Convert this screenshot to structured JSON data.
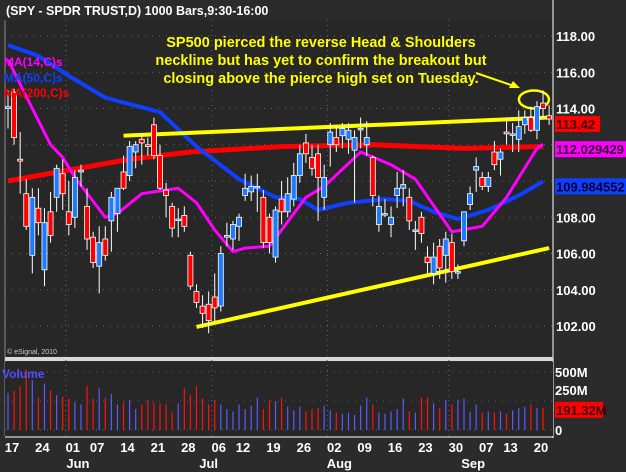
{
  "title": "(SPY - SPDR TRUST,D) 1000 Bars,9:30-16:00",
  "copyright": "© eSignal, 2010",
  "legend": [
    {
      "label": "MA(14,C)s",
      "color": "#ff00ff"
    },
    {
      "label": "MA(50,C)s",
      "color": "#1040ff"
    },
    {
      "label": "MA(200,C)s",
      "color": "#ff0000"
    }
  ],
  "annotation": {
    "lines": [
      "SP500 pierced the reverse Head & Shoulders",
      "neckline but has yet to confirm the breakout but",
      "closing above the pierce high set on Tuesday."
    ],
    "color": "#ffff00"
  },
  "chart_data": {
    "type": "candlestick",
    "symbol": "SPY",
    "price_ticks": [
      "118.00",
      "116.00",
      "114.00",
      "108.00",
      "106.00",
      "104.00",
      "102.00"
    ],
    "ylim": [
      101,
      119
    ],
    "date_ticks": [
      {
        "bar": 0,
        "label": "17"
      },
      {
        "bar": 5,
        "label": "24"
      },
      {
        "bar": 10,
        "label": "01"
      },
      {
        "bar": 14,
        "label": "07"
      },
      {
        "bar": 19,
        "label": "14"
      },
      {
        "bar": 24,
        "label": "21"
      },
      {
        "bar": 29,
        "label": "28"
      },
      {
        "bar": 34,
        "label": "06"
      },
      {
        "bar": 38,
        "label": "12"
      },
      {
        "bar": 43,
        "label": "19"
      },
      {
        "bar": 48,
        "label": "26"
      },
      {
        "bar": 53,
        "label": "02"
      },
      {
        "bar": 58,
        "label": "09"
      },
      {
        "bar": 63,
        "label": "16"
      },
      {
        "bar": 68,
        "label": "23"
      },
      {
        "bar": 73,
        "label": "30"
      },
      {
        "bar": 78,
        "label": "07"
      },
      {
        "bar": 82,
        "label": "13"
      },
      {
        "bar": 87,
        "label": "20"
      }
    ],
    "month_ticks": [
      {
        "bar": 11.5,
        "label": "Jun"
      },
      {
        "bar": 33,
        "label": "Jul"
      },
      {
        "bar": 54.5,
        "label": "Aug"
      },
      {
        "bar": 76.5,
        "label": "Sep"
      }
    ],
    "ohlc": [
      [
        114.0,
        115.0,
        112.9,
        114.1
      ],
      [
        114.9,
        115.1,
        112.0,
        112.4
      ],
      [
        111.2,
        112.7,
        109.3,
        111.1
      ],
      [
        109.3,
        110.1,
        107.3,
        107.5
      ],
      [
        105.9,
        109.6,
        104.9,
        109.1
      ],
      [
        108.5,
        109.6,
        107.0,
        107.7
      ],
      [
        105.1,
        108.5,
        104.2,
        107.7
      ],
      [
        108.3,
        109.4,
        106.6,
        107.0
      ],
      [
        109.1,
        110.9,
        108.3,
        110.7
      ],
      [
        110.4,
        111.2,
        108.4,
        109.3
      ],
      [
        108.3,
        110.0,
        107.0,
        107.6
      ],
      [
        108.0,
        110.6,
        107.4,
        110.2
      ],
      [
        110.5,
        110.9,
        109.7,
        110.6
      ],
      [
        108.6,
        109.6,
        106.2,
        106.8
      ],
      [
        106.9,
        107.2,
        105.2,
        105.5
      ],
      [
        105.3,
        107.5,
        103.8,
        106.6
      ],
      [
        106.8,
        107.5,
        105.6,
        105.9
      ],
      [
        107.8,
        109.4,
        106.1,
        109.1
      ],
      [
        108.2,
        109.6,
        107.2,
        109.6
      ],
      [
        110.5,
        111.4,
        109.5,
        109.6
      ],
      [
        110.3,
        112.2,
        110.0,
        111.9
      ],
      [
        111.6,
        112.2,
        110.7,
        112.0
      ],
      [
        112.3,
        112.6,
        110.9,
        112.1
      ],
      [
        112.0,
        112.4,
        111.4,
        111.9
      ],
      [
        113.1,
        113.5,
        111.2,
        111.4
      ],
      [
        111.4,
        112.0,
        109.5,
        109.6
      ],
      [
        109.5,
        109.9,
        108.0,
        109.2
      ],
      [
        108.6,
        108.8,
        106.9,
        107.4
      ],
      [
        107.9,
        108.5,
        106.9,
        107.9
      ],
      [
        108.1,
        108.6,
        107.2,
        107.5
      ],
      [
        105.9,
        106.1,
        104.0,
        104.2
      ],
      [
        103.9,
        104.3,
        103.0,
        103.3
      ],
      [
        103.1,
        103.7,
        101.9,
        102.7
      ],
      [
        103.2,
        103.9,
        101.6,
        102.3
      ],
      [
        103.6,
        104.9,
        102.2,
        103.0
      ],
      [
        103.1,
        106.4,
        102.8,
        106.0
      ],
      [
        106.9,
        107.7,
        106.4,
        107.0
      ],
      [
        106.8,
        107.8,
        106.2,
        107.6
      ],
      [
        107.5,
        108.2,
        106.7,
        108.0
      ],
      [
        109.2,
        110.4,
        108.9,
        109.6
      ],
      [
        109.4,
        110.3,
        108.9,
        109.7
      ],
      [
        109.7,
        110.4,
        108.3,
        109.7
      ],
      [
        109.1,
        109.5,
        106.3,
        106.6
      ],
      [
        108.0,
        108.2,
        106.0,
        106.6
      ],
      [
        105.8,
        108.6,
        105.5,
        108.4
      ],
      [
        109.0,
        110.0,
        107.6,
        108.3
      ],
      [
        108.3,
        110.2,
        108.0,
        109.3
      ],
      [
        109.0,
        111.0,
        108.6,
        110.3
      ],
      [
        110.3,
        112.0,
        109.9,
        111.5
      ],
      [
        112.1,
        112.6,
        111.0,
        111.5
      ],
      [
        111.3,
        112.0,
        110.3,
        110.7
      ],
      [
        111.5,
        112.0,
        107.8,
        110.2
      ],
      [
        109.1,
        110.9,
        108.4,
        110.2
      ],
      [
        112.0,
        113.2,
        110.8,
        112.7
      ],
      [
        112.4,
        113.1,
        111.6,
        112.0
      ],
      [
        112.5,
        113.2,
        111.8,
        112.9
      ],
      [
        112.3,
        113.2,
        111.5,
        112.8
      ],
      [
        111.7,
        112.8,
        108.8,
        112.4
      ],
      [
        112.9,
        113.5,
        111.8,
        112.9
      ],
      [
        112.0,
        113.3,
        111.4,
        112.4
      ],
      [
        111.3,
        111.4,
        108.6,
        109.2
      ],
      [
        107.6,
        109.2,
        107.2,
        108.6
      ],
      [
        108.2,
        109.0,
        108.0,
        108.2
      ],
      [
        107.6,
        108.6,
        106.9,
        108.0
      ],
      [
        109.2,
        110.5,
        108.5,
        109.6
      ],
      [
        109.6,
        110.6,
        108.6,
        109.8
      ],
      [
        109.1,
        109.6,
        107.3,
        107.8
      ],
      [
        107.3,
        107.8,
        106.2,
        107.3
      ],
      [
        108.0,
        108.3,
        106.6,
        107.1
      ],
      [
        105.8,
        106.4,
        104.8,
        105.5
      ],
      [
        104.9,
        106.6,
        104.3,
        105.8
      ],
      [
        106.4,
        106.8,
        104.6,
        105.2
      ],
      [
        105.9,
        107.2,
        104.4,
        106.8
      ],
      [
        106.6,
        107.1,
        104.6,
        105.0
      ],
      [
        105.0,
        105.4,
        104.6,
        105.0
      ],
      [
        106.7,
        108.3,
        106.4,
        108.3
      ],
      [
        108.7,
        109.7,
        108.4,
        109.3
      ],
      [
        110.6,
        111.3,
        109.4,
        110.8
      ],
      [
        110.2,
        110.5,
        109.5,
        109.7
      ],
      [
        109.7,
        110.5,
        109.4,
        110.2
      ],
      [
        111.6,
        112.2,
        110.6,
        110.9
      ],
      [
        111.2,
        111.8,
        110.3,
        111.6
      ],
      [
        112.7,
        113.5,
        112.0,
        112.6
      ],
      [
        112.6,
        113.2,
        111.6,
        112.6
      ],
      [
        112.3,
        113.9,
        111.6,
        113.0
      ],
      [
        113.1,
        113.9,
        112.6,
        113.5
      ],
      [
        113.5,
        114.1,
        112.7,
        112.8
      ],
      [
        112.8,
        114.4,
        112.3,
        114.1
      ],
      [
        114.3,
        115.0,
        113.5,
        114.0
      ],
      [
        113.6,
        114.2,
        113.1,
        113.42
      ]
    ],
    "ma14": [
      [
        0,
        116.7
      ],
      [
        2.5,
        115.0
      ],
      [
        7,
        112.0
      ],
      [
        9,
        111.3
      ],
      [
        11,
        110.2
      ],
      [
        16,
        108.0
      ],
      [
        18,
        108.2
      ],
      [
        22,
        109.3
      ],
      [
        28,
        109.6
      ],
      [
        31,
        108.8
      ],
      [
        34,
        107.3
      ],
      [
        37,
        106.1
      ],
      [
        39,
        106.3
      ],
      [
        43,
        106.4
      ],
      [
        49,
        109.1
      ],
      [
        52,
        109.7
      ],
      [
        58,
        111.6
      ],
      [
        63,
        110.9
      ],
      [
        67,
        110.1
      ],
      [
        73,
        107.2
      ],
      [
        78,
        107.5
      ],
      [
        82,
        109.1
      ],
      [
        87,
        111.8
      ],
      [
        88,
        112.03
      ]
    ],
    "ma50": [
      [
        0,
        117.5
      ],
      [
        5,
        116.9
      ],
      [
        10,
        115.8
      ],
      [
        16,
        114.6
      ],
      [
        25,
        113.8
      ],
      [
        31,
        111.9
      ],
      [
        38,
        110.1
      ],
      [
        44,
        109.1
      ],
      [
        48,
        109.0
      ],
      [
        51,
        108.4
      ],
      [
        56,
        108.8
      ],
      [
        62,
        109.0
      ],
      [
        66,
        108.9
      ],
      [
        70,
        108.3
      ],
      [
        74,
        107.9
      ],
      [
        79,
        108.4
      ],
      [
        84,
        109.2
      ],
      [
        88,
        109.98
      ]
    ],
    "ma200": [
      [
        0,
        110.0
      ],
      [
        10,
        110.6
      ],
      [
        20,
        111.2
      ],
      [
        30,
        111.6
      ],
      [
        45,
        111.9
      ],
      [
        60,
        112.0
      ],
      [
        75,
        111.8
      ],
      [
        88,
        111.9
      ]
    ],
    "trendlines": [
      {
        "name": "neckline",
        "from": [
          19,
          112.5
        ],
        "to": [
          89,
          113.5
        ]
      },
      {
        "name": "support",
        "from": [
          31,
          101.95
        ],
        "to": [
          89,
          106.3
        ]
      }
    ],
    "highlight": {
      "bar": 86.5,
      "price": 114.5
    },
    "last_values": [
      {
        "label": "113.42",
        "value": 113.42,
        "bg": "#ff0000",
        "fg": "#400000"
      },
      {
        "label": "112.029429",
        "value": 112.03,
        "bg": "#ff00ff",
        "fg": "#300030"
      },
      {
        "label": "109.984552",
        "value": 109.98,
        "bg": "#1040ff",
        "fg": "#000030"
      }
    ],
    "volume": {
      "label": "Volume",
      "ticks": [
        {
          "value": 500,
          "label": "500M"
        },
        {
          "value": 250,
          "label": "250M"
        },
        {
          "value": 0,
          "label": "0"
        }
      ],
      "last_label": "191.32M",
      "values_millions": [
        320,
        340,
        380,
        520,
        430,
        280,
        400,
        340,
        300,
        290,
        270,
        240,
        220,
        380,
        270,
        360,
        280,
        310,
        220,
        240,
        260,
        180,
        220,
        260,
        240,
        230,
        220,
        150,
        230,
        360,
        300,
        380,
        270,
        220,
        260,
        220,
        180,
        160,
        220,
        180,
        210,
        280,
        180,
        260,
        250,
        280,
        200,
        170,
        200,
        160,
        180,
        190,
        210,
        170,
        150,
        140,
        150,
        130,
        210,
        280,
        220,
        150,
        140,
        160,
        180,
        270,
        160,
        150,
        280,
        280,
        230,
        190,
        260,
        220,
        260,
        270,
        160,
        220,
        150,
        160,
        150,
        160,
        140,
        170,
        190,
        200,
        220,
        190,
        191
      ]
    },
    "colors": {
      "up": "#1e7bff",
      "down": "#ff0000",
      "trend": "#ffff00",
      "vol_up": "#5a5aff",
      "vol_down": "#ff1010"
    }
  }
}
